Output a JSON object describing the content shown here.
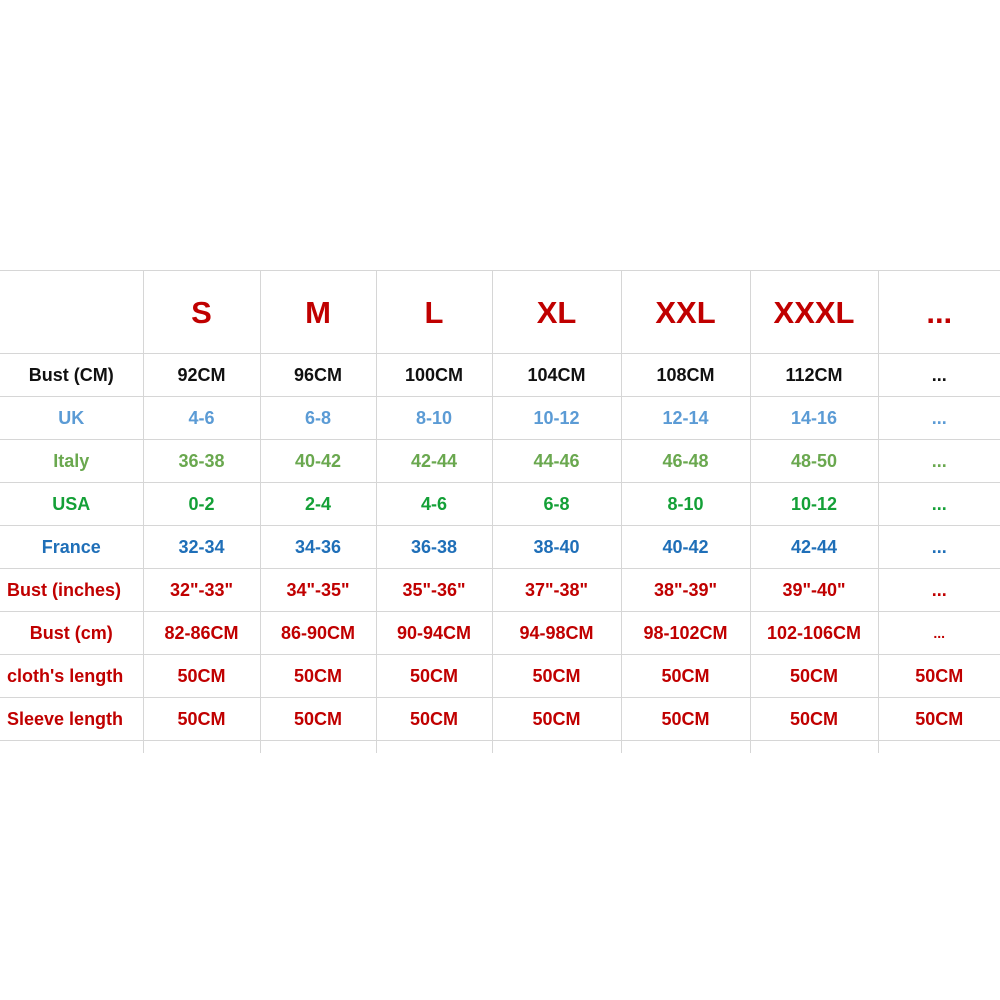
{
  "colors": {
    "header": "#c00000",
    "bust_cm": "#111111",
    "uk": "#5b9bd5",
    "italy": "#6aa84f",
    "usa": "#14a037",
    "france": "#1f6fb8",
    "measure": "#c00000"
  },
  "header": {
    "sizes": [
      "S",
      "M",
      "L",
      "XL",
      "XXL",
      "XXXL",
      "..."
    ]
  },
  "rows": [
    {
      "label": "Bust (CM)",
      "values": [
        "92CM",
        "96CM",
        "100CM",
        "104CM",
        "108CM",
        "112CM",
        "..."
      ]
    },
    {
      "label": "UK",
      "values": [
        "4-6",
        "6-8",
        "8-10",
        "10-12",
        "12-14",
        "14-16",
        "..."
      ]
    },
    {
      "label": "Italy",
      "values": [
        "36-38",
        "40-42",
        "42-44",
        "44-46",
        "46-48",
        "48-50",
        "..."
      ]
    },
    {
      "label": "USA",
      "values": [
        "0-2",
        "2-4",
        "4-6",
        "6-8",
        "8-10",
        "10-12",
        "..."
      ]
    },
    {
      "label": "France",
      "values": [
        "32-34",
        "34-36",
        "36-38",
        "38-40",
        "40-42",
        "42-44",
        "..."
      ]
    },
    {
      "label": "Bust (inches)",
      "values": [
        "32\"-33\"",
        "34\"-35\"",
        "35\"-36\"",
        "37\"-38\"",
        "38\"-39\"",
        "39\"-40\"",
        "..."
      ]
    },
    {
      "label": "Bust (cm)",
      "values": [
        "82-86CM",
        "86-90CM",
        "90-94CM",
        "94-98CM",
        "98-102CM",
        "102-106CM",
        "..."
      ]
    },
    {
      "label": "cloth's length",
      "values": [
        "50CM",
        "50CM",
        "50CM",
        "50CM",
        "50CM",
        "50CM",
        "50CM"
      ]
    },
    {
      "label": "Sleeve length",
      "values": [
        "50CM",
        "50CM",
        "50CM",
        "50CM",
        "50CM",
        "50CM",
        "50CM"
      ]
    }
  ]
}
